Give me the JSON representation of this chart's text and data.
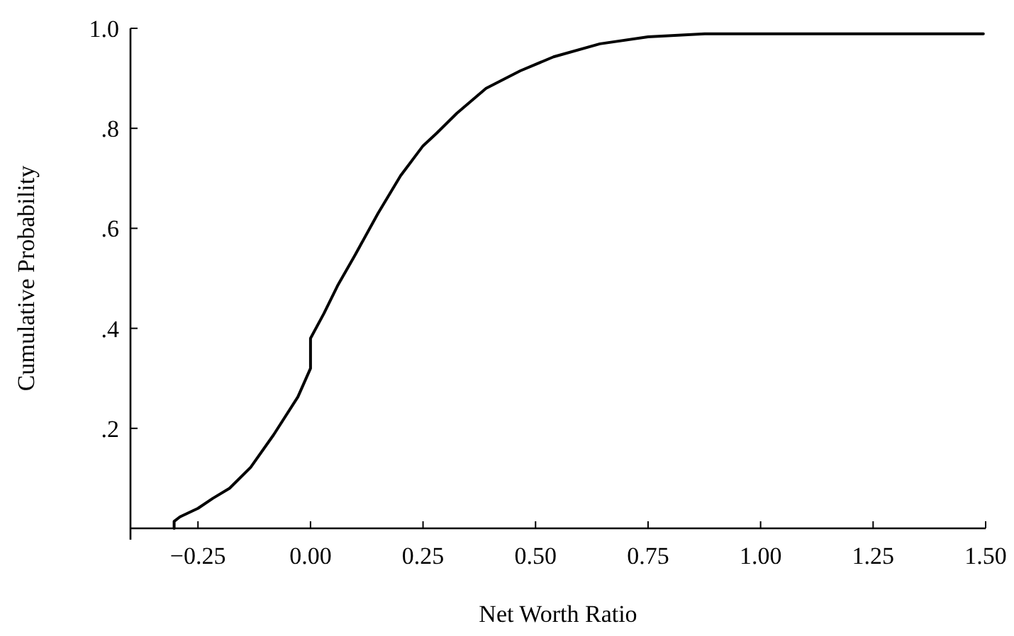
{
  "chart_data": {
    "type": "line",
    "xlabel": "Net Worth Ratio",
    "ylabel": "Cumulative Probability",
    "xlim": [
      -0.4,
      1.5
    ],
    "ylim": [
      0,
      1.0
    ],
    "xticks": [
      {
        "value": -0.25,
        "label": "−0.25"
      },
      {
        "value": 0,
        "label": "0.00"
      },
      {
        "value": 0.25,
        "label": "0.25"
      },
      {
        "value": 0.5,
        "label": "0.50"
      },
      {
        "value": 0.75,
        "label": "0.75"
      },
      {
        "value": 1,
        "label": "1.00"
      },
      {
        "value": 1.25,
        "label": "1.25"
      },
      {
        "value": 1.5,
        "label": "1.50"
      }
    ],
    "yticks": [
      {
        "value": 0.2,
        "label": ".2"
      },
      {
        "value": 0.4,
        "label": ".4"
      },
      {
        "value": 0.6,
        "label": ".6"
      },
      {
        "value": 0.8,
        "label": ".8"
      },
      {
        "value": 1.0,
        "label": "1.0"
      }
    ],
    "grid": false,
    "marker": "none",
    "line_style": "solid",
    "series": [
      {
        "color": "#000000",
        "x": [
          -0.303,
          -0.303,
          -0.29,
          -0.25,
          -0.217,
          -0.18,
          -0.133,
          -0.082,
          -0.028,
          0.0,
          0.0,
          0.03,
          0.06,
          0.098,
          0.15,
          0.2,
          0.25,
          0.28,
          0.325,
          0.39,
          0.466,
          0.54,
          0.643,
          0.75,
          0.876,
          1.0,
          1.25,
          1.495
        ],
        "values": [
          0.0,
          0.014,
          0.023,
          0.04,
          0.06,
          0.08,
          0.122,
          0.187,
          0.263,
          0.32,
          0.38,
          0.43,
          0.485,
          0.545,
          0.63,
          0.705,
          0.765,
          0.79,
          0.83,
          0.88,
          0.915,
          0.943,
          0.969,
          0.983,
          0.989,
          0.989,
          0.989,
          0.989
        ]
      }
    ]
  }
}
